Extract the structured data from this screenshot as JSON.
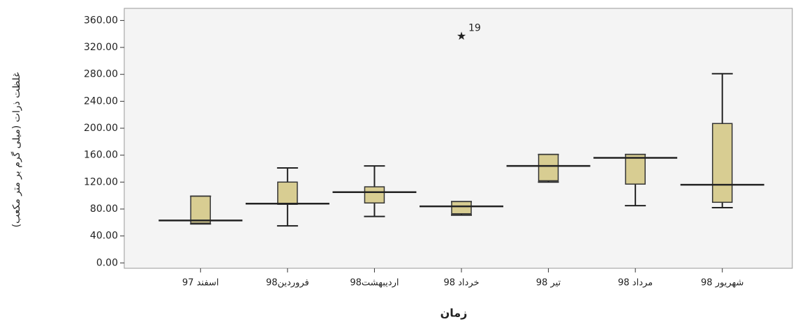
{
  "chart_data": {
    "type": "box",
    "ylabel": "غلظت ذرات (میلی گرم بر متر مکعب)",
    "xlabel": "زمان",
    "categories": [
      "اسفند 97",
      "فروردین98",
      "اردیبهشت98",
      "خرداد 98",
      "تیر 98",
      "مرداد 98",
      "شهریور 98"
    ],
    "boxes": [
      {
        "low": 58,
        "q1": 59,
        "median": 63,
        "q3": 99,
        "high": 99
      },
      {
        "low": 55,
        "q1": 87,
        "median": 88,
        "q3": 120,
        "high": 141
      },
      {
        "low": 69,
        "q1": 89,
        "median": 105,
        "q3": 113,
        "high": 144
      },
      {
        "low": 71,
        "q1": 73,
        "median": 84,
        "q3": 91,
        "high": 91
      },
      {
        "low": 120,
        "q1": 122,
        "median": 144,
        "q3": 161,
        "high": 161
      },
      {
        "low": 85,
        "q1": 117,
        "median": 156,
        "q3": 161,
        "high": 161
      },
      {
        "low": 82,
        "q1": 90,
        "median": 116,
        "q3": 207,
        "high": 281
      }
    ],
    "outliers": [
      {
        "box": 3,
        "value": 336,
        "label": "19"
      }
    ],
    "color": "#d8cd92",
    "ylim": [
      -8,
      378
    ],
    "yticks": [
      {
        "value": 0,
        "label": "0.00"
      },
      {
        "value": 40,
        "label": "40.00"
      },
      {
        "value": 80,
        "label": "80.00"
      },
      {
        "value": 120,
        "label": "120.00"
      },
      {
        "value": 160,
        "label": "160.00"
      },
      {
        "value": 200,
        "label": "200.00"
      },
      {
        "value": 240,
        "label": "240.00"
      },
      {
        "value": 280,
        "label": "280.00"
      },
      {
        "value": 320,
        "label": "320.00"
      },
      {
        "value": 360,
        "label": "360.00"
      }
    ]
  }
}
